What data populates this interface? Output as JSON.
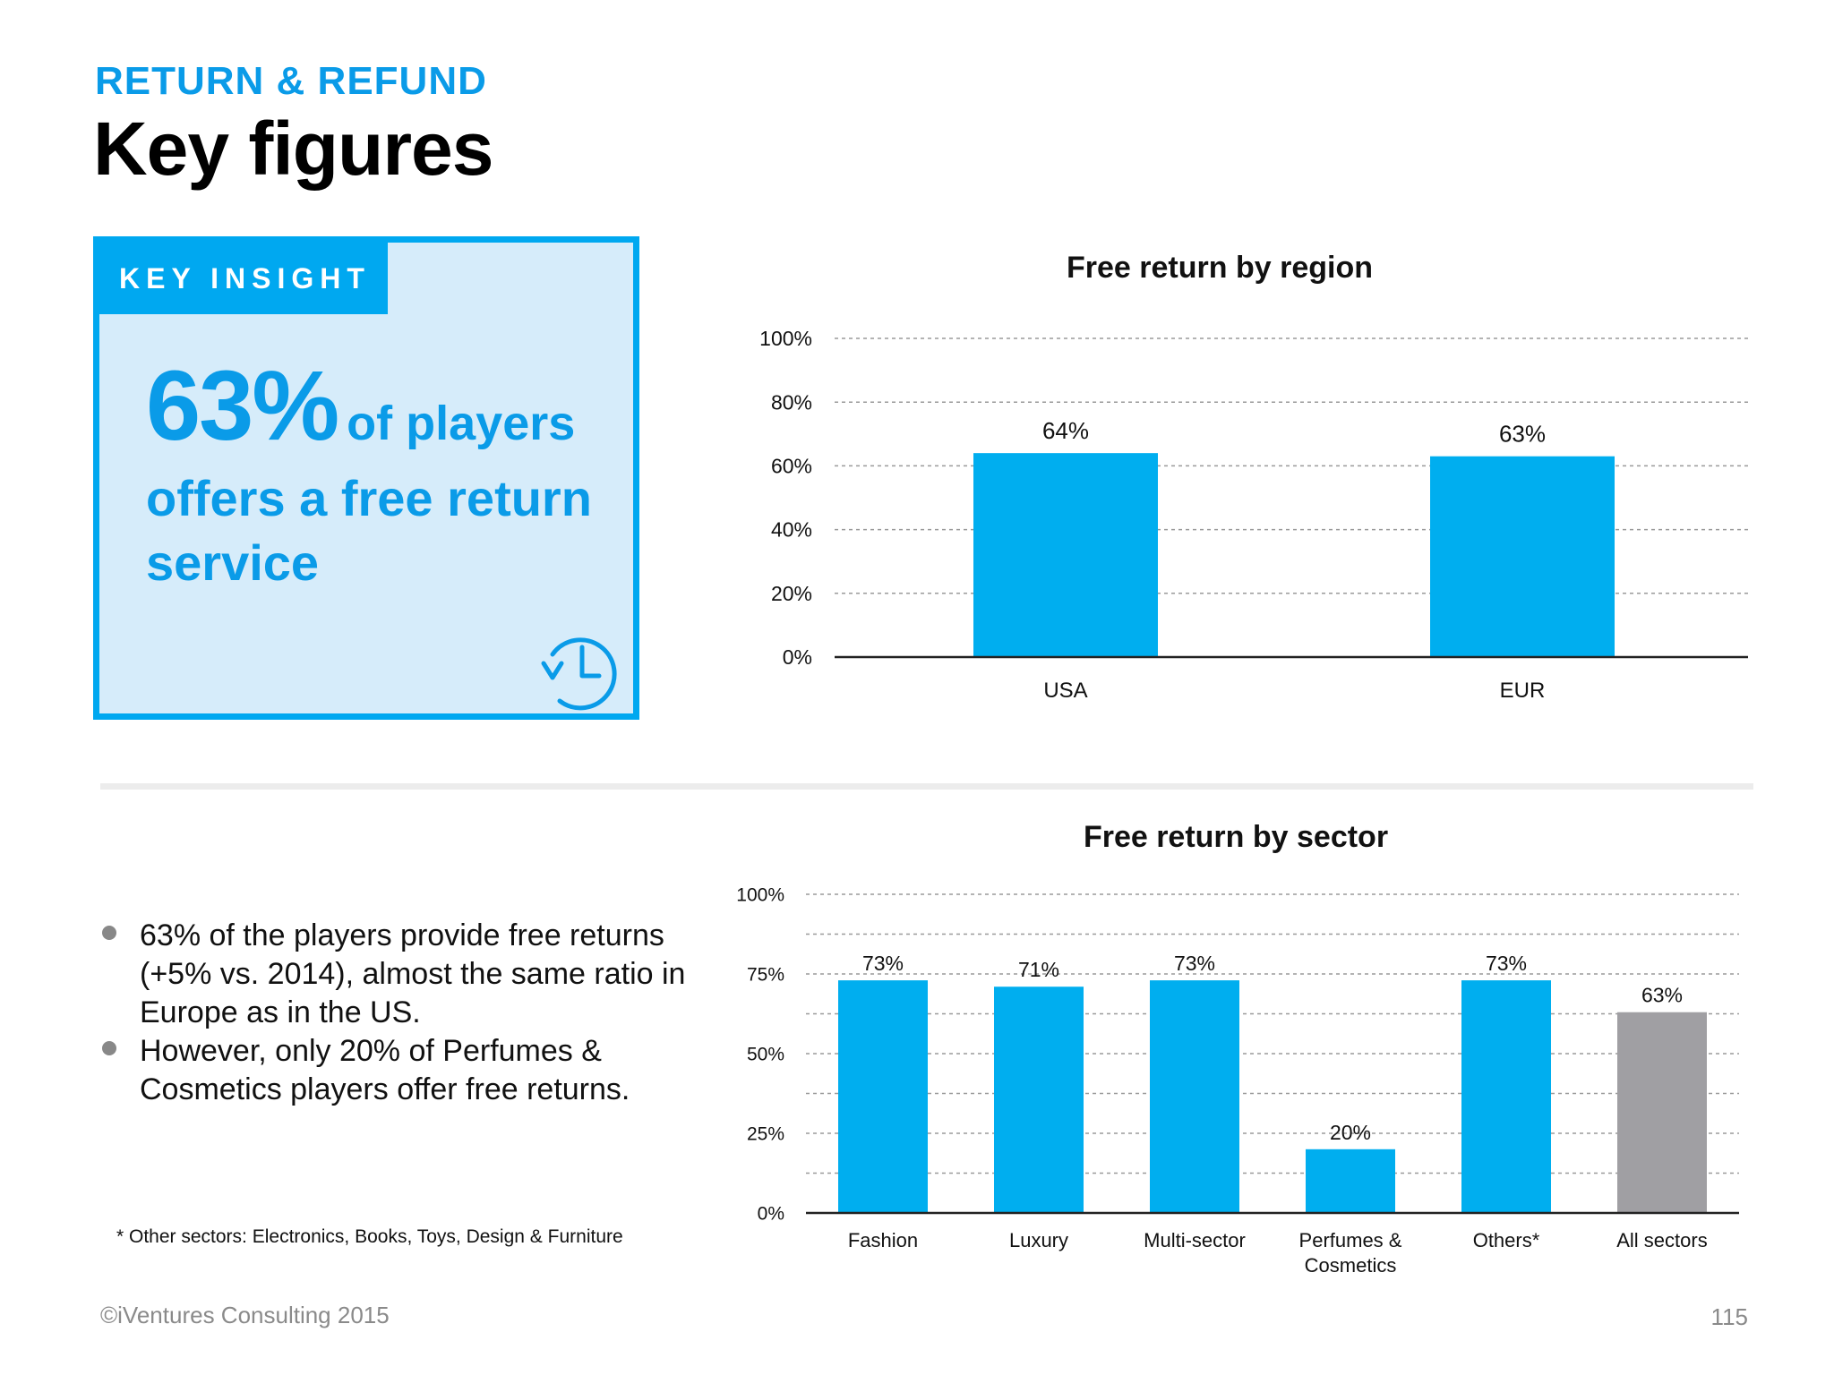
{
  "header": {
    "section_tag": "RETURN & REFUND",
    "title": "Key figures"
  },
  "key_insight": {
    "label": "KEY INSIGHT",
    "big_value": "63%",
    "line1_suffix": "of players",
    "line2": "offers a free return",
    "line3": "service",
    "icon": "history-clock-icon"
  },
  "bullets": [
    "63% of the players provide free returns (+5% vs.  2014), almost the same ratio in Europe as in the US.",
    "However, only 20% of Perfumes & Cosmetics players offer free returns."
  ],
  "footnote": "* Other sectors: Electronics, Books, Toys, Design & Furniture",
  "footer": {
    "copyright": "©iVentures Consulting 2015",
    "page_number": "115"
  },
  "colors": {
    "accent": "#00aeef",
    "neutral_bar": "#a09fa3",
    "text": "#111111"
  },
  "chart_data": [
    {
      "type": "bar",
      "title": "Free return by region",
      "categories": [
        "USA",
        "EUR"
      ],
      "values": [
        64,
        63
      ],
      "data_labels": [
        "64%",
        "63%"
      ],
      "ylim": [
        0,
        100
      ],
      "yticks": [
        0,
        20,
        40,
        60,
        80,
        100
      ],
      "ytick_labels": [
        "0%",
        "20%",
        "40%",
        "60%",
        "80%",
        "100%"
      ],
      "grid": true,
      "xlabel": "",
      "ylabel": ""
    },
    {
      "type": "bar",
      "title": "Free return by sector",
      "categories": [
        "Fashion",
        "Luxury",
        "Multi-sector",
        "Perfumes & Cosmetics",
        "Others*",
        "All sectors"
      ],
      "category_lines": [
        [
          "Fashion"
        ],
        [
          "Luxury"
        ],
        [
          "Multi-sector"
        ],
        [
          "Perfumes &",
          "Cosmetics"
        ],
        [
          "Others*"
        ],
        [
          "All sectors"
        ]
      ],
      "values": [
        73,
        71,
        73,
        20,
        73,
        63
      ],
      "data_labels": [
        "73%",
        "71%",
        "73%",
        "20%",
        "73%",
        "63%"
      ],
      "highlight_index": 5,
      "ylim": [
        0,
        100
      ],
      "yticks": [
        0,
        25,
        50,
        75,
        100
      ],
      "ytick_labels": [
        "0%",
        "25%",
        "50%",
        "75%",
        "100%"
      ],
      "grid": true,
      "xlabel": "",
      "ylabel": ""
    }
  ]
}
